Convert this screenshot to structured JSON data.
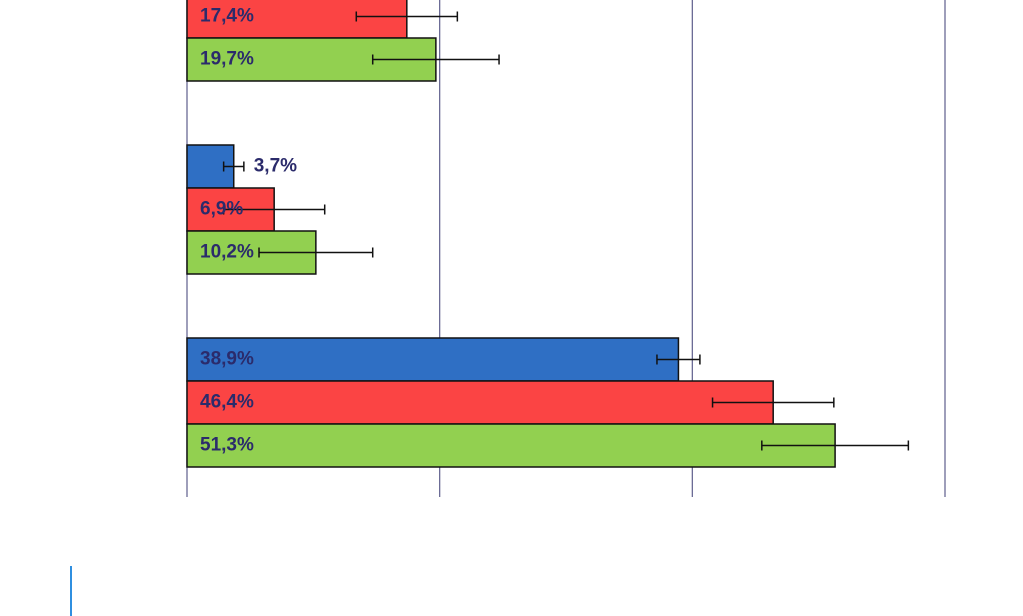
{
  "chart_data": {
    "type": "hbar",
    "categories": [
      null,
      null,
      null
    ],
    "series": [
      {
        "color": "#2f6fc4",
        "values": [
          null,
          3.7,
          38.9
        ],
        "value_labels": [
          null,
          "3,7%",
          "38,9%"
        ],
        "errors": [
          null,
          0.8,
          1.7
        ]
      },
      {
        "color": "#fb4444",
        "values": [
          17.4,
          6.9,
          46.4
        ],
        "value_labels": [
          "17,4%",
          "6,9%",
          "46,4%"
        ],
        "errors": [
          4,
          4,
          4.8
        ]
      },
      {
        "color": "#92d050",
        "values": [
          19.7,
          10.2,
          51.3
        ],
        "value_labels": [
          "19,7%",
          "10,2%",
          "51,3%"
        ],
        "errors": [
          5,
          4.5,
          5.8
        ]
      }
    ],
    "xlim": [
      0,
      60
    ],
    "xticks": [
      0,
      20,
      40,
      60
    ],
    "grid": true
  }
}
